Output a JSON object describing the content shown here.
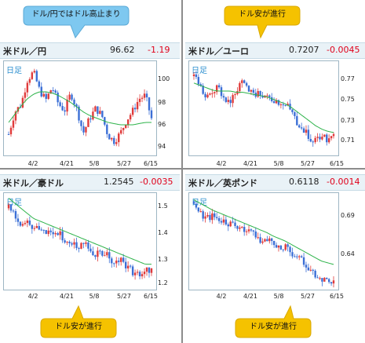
{
  "callouts": {
    "top_left": "ドル/円ではドル高止まり",
    "top_right": "ドル安が進行",
    "bottom_left": "ドル安が進行",
    "bottom_right": "ドル安が進行"
  },
  "colors": {
    "up_candle": "#e03b3b",
    "down_candle": "#3b6fd6",
    "moving_average": "#2db34a",
    "bubble_blue": "#7ec8f0",
    "bubble_yellow": "#f5c200"
  },
  "chart_data": [
    {
      "type": "candlestick",
      "pair": "米ドル／円",
      "price": "96.62",
      "change": "-1.19",
      "timeframe": "日足",
      "x_ticks": [
        "4/2",
        "4/21",
        "5/8",
        "5/27",
        "6/15"
      ],
      "y_ticks": [
        "100",
        "98",
        "96",
        "94"
      ],
      "ylim": [
        93.5,
        101.5
      ],
      "close_path": [
        95.3,
        97.2,
        97.8,
        99.9,
        100.6,
        99.0,
        98.2,
        99.3,
        97.9,
        97.3,
        98.8,
        97.4,
        95.4,
        96.6,
        97.5,
        96.9,
        95.2,
        94.7,
        95.4,
        96.5,
        97.3,
        98.3,
        98.6,
        96.62
      ],
      "ma_path": [
        96.3,
        97.0,
        97.7,
        98.3,
        98.7,
        98.9,
        98.9,
        98.8,
        98.6,
        98.3,
        98.0,
        97.6,
        97.2,
        96.9,
        96.7,
        96.5,
        96.3,
        96.2,
        96.1,
        96.1,
        96.1,
        96.2,
        96.3,
        96.3
      ]
    },
    {
      "type": "candlestick",
      "pair": "米ドル／ユーロ",
      "price": "0.7207",
      "change": "-0.0045",
      "timeframe": "日足",
      "x_ticks": [
        "4/2",
        "4/21",
        "5/8",
        "5/27",
        "6/15"
      ],
      "y_ticks": [
        "0.77",
        "0.75",
        "0.73",
        "0.71"
      ],
      "ylim": [
        0.7,
        0.782
      ],
      "close_path": [
        0.769,
        0.76,
        0.748,
        0.755,
        0.759,
        0.75,
        0.746,
        0.758,
        0.763,
        0.758,
        0.754,
        0.752,
        0.756,
        0.748,
        0.744,
        0.746,
        0.738,
        0.728,
        0.722,
        0.716,
        0.712,
        0.718,
        0.714,
        0.7207
      ],
      "ma_path": [
        0.763,
        0.761,
        0.759,
        0.757,
        0.756,
        0.756,
        0.756,
        0.755,
        0.755,
        0.754,
        0.753,
        0.752,
        0.751,
        0.749,
        0.747,
        0.745,
        0.742,
        0.738,
        0.734,
        0.73,
        0.726,
        0.723,
        0.721,
        0.72
      ]
    },
    {
      "type": "candlestick",
      "pair": "米ドル／豪ドル",
      "price": "1.2545",
      "change": "-0.0035",
      "timeframe": "日足",
      "x_ticks": [
        "4/2",
        "4/21",
        "5/8",
        "5/27",
        "6/15"
      ],
      "y_ticks": [
        "1.5",
        "1.4",
        "1.3",
        "1.2"
      ],
      "ylim": [
        1.18,
        1.56
      ],
      "close_path": [
        1.5,
        1.47,
        1.44,
        1.45,
        1.42,
        1.43,
        1.41,
        1.39,
        1.4,
        1.38,
        1.37,
        1.35,
        1.36,
        1.34,
        1.32,
        1.33,
        1.31,
        1.29,
        1.3,
        1.27,
        1.25,
        1.24,
        1.26,
        1.2545
      ],
      "ma_path": [
        1.54,
        1.52,
        1.5,
        1.48,
        1.46,
        1.45,
        1.44,
        1.43,
        1.42,
        1.41,
        1.4,
        1.39,
        1.38,
        1.37,
        1.36,
        1.35,
        1.34,
        1.33,
        1.32,
        1.31,
        1.3,
        1.29,
        1.28,
        1.28
      ]
    },
    {
      "type": "candlestick",
      "pair": "米ドル／英ポンド",
      "price": "0.6118",
      "change": "-0.0014",
      "timeframe": "日足",
      "x_ticks": [
        "4/2",
        "4/21",
        "5/8",
        "5/27",
        "6/15"
      ],
      "y_ticks": [
        "0.69",
        "0.64"
      ],
      "ylim": [
        0.6,
        0.715
      ],
      "close_path": [
        0.705,
        0.692,
        0.686,
        0.688,
        0.684,
        0.681,
        0.677,
        0.674,
        0.672,
        0.668,
        0.665,
        0.66,
        0.662,
        0.655,
        0.65,
        0.652,
        0.645,
        0.64,
        0.632,
        0.625,
        0.618,
        0.614,
        0.612,
        0.6118
      ],
      "ma_path": [
        0.707,
        0.703,
        0.699,
        0.695,
        0.692,
        0.689,
        0.686,
        0.683,
        0.68,
        0.677,
        0.674,
        0.671,
        0.668,
        0.664,
        0.661,
        0.658,
        0.654,
        0.65,
        0.646,
        0.642,
        0.638,
        0.634,
        0.632,
        0.63
      ]
    }
  ]
}
